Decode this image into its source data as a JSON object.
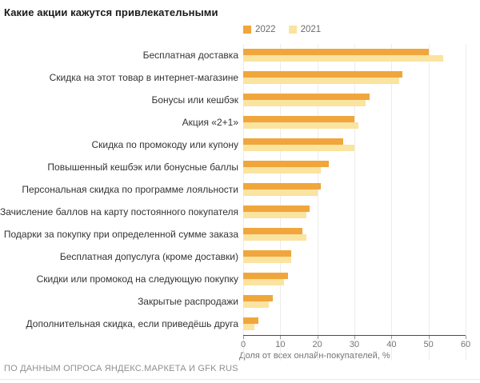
{
  "title": "Какие акции кажутся привлекательными",
  "legend": [
    {
      "label": "2022",
      "color": "#F0A63C"
    },
    {
      "label": "2021",
      "color": "#FBE3A0"
    }
  ],
  "chart_data": {
    "type": "bar",
    "orientation": "horizontal",
    "title": "Какие акции кажутся привлекательными",
    "categories": [
      "Бесплатная доставка",
      "Скидка на этот товар в интернет-магазине",
      "Бонусы или кешбэк",
      "Акция «2+1»",
      "Скидка по промокоду или купону",
      "Повышенный кешбэк или бонусные баллы",
      "Персональная скидка по программе лояльности",
      "Зачисление баллов на карту постоянного покупателя",
      "Подарки за покупку при определенной сумме заказа",
      "Бесплатная допуслуга (кроме доставки)",
      "Скидки или промокод на следующую покупку",
      "Закрытые распродажи",
      "Дополнительная скидка, если приведёшь друга"
    ],
    "series": [
      {
        "name": "2022",
        "color": "#F0A63C",
        "values": [
          50,
          43,
          34,
          30,
          27,
          23,
          21,
          18,
          16,
          13,
          12,
          8,
          4
        ]
      },
      {
        "name": "2021",
        "color": "#FBE3A0",
        "values": [
          54,
          42,
          33,
          31,
          30,
          21,
          20,
          17,
          17,
          13,
          11,
          7,
          3
        ]
      }
    ],
    "xlabel": "Доля от всех онлайн-покупателей, %",
    "ylabel": "",
    "xlim": [
      0,
      60
    ],
    "xticks": [
      0,
      10,
      20,
      30,
      40,
      50,
      60
    ],
    "grid": true,
    "legend_position": "top"
  },
  "footer": "ПО ДАННЫМ ОПРОСА ЯНДЕКС.МАРКЕТА И GFK RUS"
}
